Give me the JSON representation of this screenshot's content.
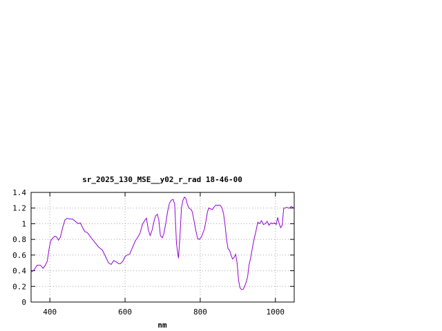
{
  "chart_data": {
    "type": "line",
    "title": "sr_2025_130_MSE__y02_r_rad 18-46-00",
    "xlabel": "nm",
    "ylabel": "",
    "xlim": [
      350,
      1050
    ],
    "ylim": [
      0,
      1.4
    ],
    "grid": true,
    "x_ticks": [
      400,
      600,
      800,
      1000
    ],
    "x_tick_labels": [
      "400",
      "600",
      "800",
      "1000"
    ],
    "y_ticks": [
      0,
      0.2,
      0.4,
      0.6,
      0.8,
      1,
      1.2,
      1.4
    ],
    "y_tick_labels": [
      "0",
      "0.2",
      "0.4",
      "0.6",
      "0.8",
      "1",
      "1.2",
      "1.4"
    ],
    "series_color": "#9400d3",
    "series": [
      {
        "x": [
          350,
          358,
          366,
          375,
          382,
          388,
          393,
          398,
          402,
          408,
          413,
          418,
          423,
          428,
          434,
          440,
          446,
          452,
          460,
          468,
          475,
          481,
          487,
          493,
          499,
          504,
          510,
          520,
          530,
          540,
          548,
          556,
          563,
          570,
          577,
          583,
          588,
          594,
          600,
          605,
          612,
          620,
          627,
          633,
          640,
          646,
          652,
          657,
          662,
          667,
          672,
          677,
          681,
          686,
          690,
          694,
          699,
          703,
          708,
          713,
          718,
          723,
          728,
          732,
          737,
          742,
          746,
          750,
          754,
          758,
          762,
          765,
          768,
          770,
          773,
          776,
          779,
          783,
          788,
          793,
          798,
          803,
          807,
          811,
          815,
          819,
          823,
          828,
          832,
          838,
          842,
          846,
          850,
          854,
          858,
          862,
          866,
          870,
          874,
          878,
          882,
          886,
          890,
          894,
          898,
          902,
          906,
          910,
          914,
          918,
          922,
          926,
          930,
          934,
          938,
          943,
          948,
          953,
          958,
          963,
          968,
          973,
          978,
          983,
          988,
          993,
          998,
          1002,
          1006,
          1010,
          1014,
          1018,
          1022,
          1026,
          1030,
          1034,
          1038,
          1042,
          1046,
          1050
        ],
        "y": [
          0.38,
          0.41,
          0.47,
          0.47,
          0.43,
          0.47,
          0.52,
          0.68,
          0.78,
          0.82,
          0.84,
          0.83,
          0.79,
          0.83,
          0.95,
          1.05,
          1.07,
          1.06,
          1.06,
          1.03,
          1.0,
          1.01,
          0.95,
          0.9,
          0.89,
          0.86,
          0.82,
          0.76,
          0.7,
          0.66,
          0.58,
          0.5,
          0.48,
          0.53,
          0.51,
          0.49,
          0.49,
          0.52,
          0.58,
          0.6,
          0.61,
          0.7,
          0.78,
          0.82,
          0.88,
          0.99,
          1.04,
          1.07,
          0.92,
          0.85,
          0.92,
          1.03,
          1.1,
          1.12,
          1.04,
          0.85,
          0.82,
          0.87,
          1.0,
          1.15,
          1.26,
          1.3,
          1.31,
          1.25,
          0.74,
          0.56,
          0.83,
          1.2,
          1.3,
          1.34,
          1.32,
          1.26,
          1.22,
          1.2,
          1.19,
          1.18,
          1.15,
          1.05,
          0.92,
          0.81,
          0.8,
          0.83,
          0.88,
          0.93,
          1.03,
          1.15,
          1.2,
          1.19,
          1.18,
          1.22,
          1.24,
          1.23,
          1.24,
          1.23,
          1.2,
          1.13,
          0.98,
          0.8,
          0.68,
          0.66,
          0.6,
          0.55,
          0.57,
          0.61,
          0.5,
          0.28,
          0.18,
          0.16,
          0.16,
          0.2,
          0.25,
          0.32,
          0.48,
          0.56,
          0.67,
          0.8,
          0.9,
          1.02,
          1.0,
          1.04,
          0.99,
          1.0,
          1.03,
          0.98,
          1.01,
          1.0,
          1.01,
          0.99,
          1.08,
          1.0,
          0.95,
          0.98,
          1.2,
          1.2,
          1.21,
          1.2,
          1.2,
          1.22,
          1.21,
          1.2
        ]
      }
    ]
  }
}
